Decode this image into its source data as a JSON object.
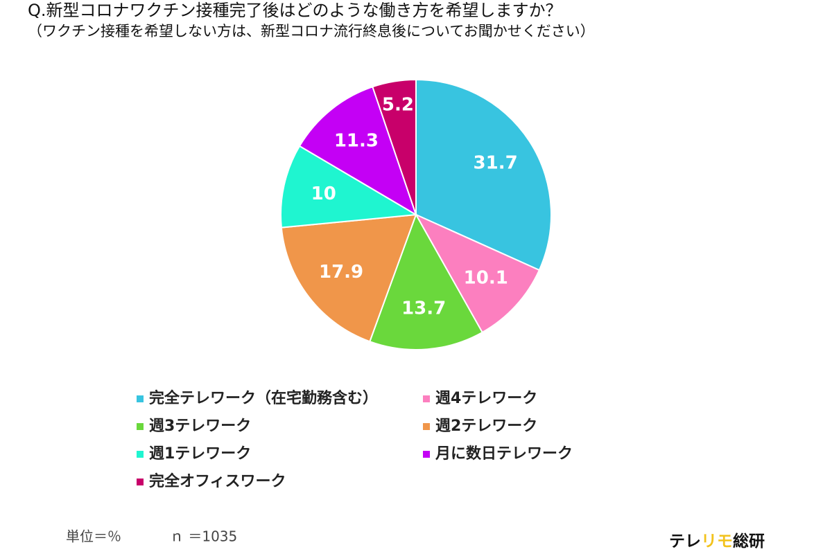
{
  "chart_data": {
    "type": "pie",
    "title": "Q.新型コロナワクチン接種完了後はどのような働き方を希望しますか？",
    "subtitle": "（ワクチン接種を希望しない方は、新型コロナ流行終息後についてお聞かせください）",
    "categories": [
      "完全テレワーク（在宅勤務含む）",
      "週4テレワーク",
      "週3テレワーク",
      "週2テレワーク",
      "週1テレワーク",
      "月に数日テレワーク",
      "完全オフィスワーク"
    ],
    "values": [
      31.7,
      10.1,
      13.7,
      17.9,
      10,
      11.3,
      5.2
    ],
    "colors": [
      "#38c4e0",
      "#fc7fbf",
      "#6ad83c",
      "#f0964a",
      "#1ff5d0",
      "#c400f5",
      "#c8006a"
    ],
    "legend": "bottom",
    "unit_note": "単位＝％",
    "n_note": "ｎ ＝1035",
    "logo": [
      "テレ",
      "リモ",
      "総研"
    ]
  }
}
